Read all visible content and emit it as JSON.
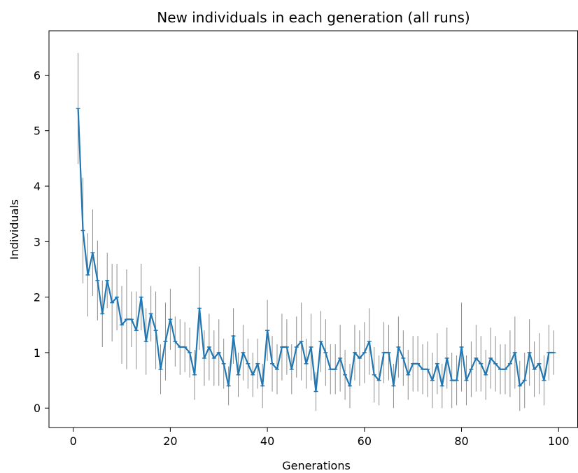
{
  "chart_data": {
    "type": "line",
    "title": "New individuals in each generation (all runs)",
    "xlabel": "Generations",
    "ylabel": "Individuals",
    "xlim": [
      -5,
      104
    ],
    "ylim": [
      -0.35,
      6.8
    ],
    "xticks": [
      0,
      20,
      40,
      60,
      80,
      100
    ],
    "yticks": [
      0,
      1,
      2,
      3,
      4,
      5,
      6
    ],
    "grid": false,
    "line_color": "#1f77b4",
    "errorbar_color": "#8c8c8c",
    "series": [
      {
        "x": [
          1,
          2,
          3,
          4,
          5,
          6,
          7,
          8,
          9,
          10,
          11,
          12,
          13,
          14,
          15,
          16,
          17,
          18,
          19,
          20,
          21,
          22,
          23,
          24,
          25,
          26,
          27,
          28,
          29,
          30,
          31,
          32,
          33,
          34,
          35,
          36,
          37,
          38,
          39,
          40,
          41,
          42,
          43,
          44,
          45,
          46,
          47,
          48,
          49,
          50,
          51,
          52,
          53,
          54,
          55,
          56,
          57,
          58,
          59,
          60,
          61,
          62,
          63,
          64,
          65,
          66,
          67,
          68,
          69,
          70,
          71,
          72,
          73,
          74,
          75,
          76,
          77,
          78,
          79,
          80,
          81,
          82,
          83,
          84,
          85,
          86,
          87,
          88,
          89,
          90,
          91,
          92,
          93,
          94,
          95,
          96,
          97,
          98,
          99
        ],
        "y": [
          5.4,
          3.2,
          2.4,
          2.8,
          2.3,
          1.7,
          2.3,
          1.9,
          2.0,
          1.5,
          1.6,
          1.6,
          1.4,
          2.0,
          1.2,
          1.7,
          1.4,
          0.7,
          1.2,
          1.6,
          1.2,
          1.1,
          1.1,
          1.0,
          0.6,
          1.8,
          0.9,
          1.1,
          0.9,
          1.0,
          0.8,
          0.4,
          1.3,
          0.6,
          1.0,
          0.8,
          0.6,
          0.8,
          0.4,
          1.4,
          0.8,
          0.7,
          1.1,
          1.1,
          0.7,
          1.1,
          1.2,
          0.8,
          1.1,
          0.3,
          1.2,
          1.0,
          0.7,
          0.7,
          0.9,
          0.6,
          0.4,
          1.0,
          0.9,
          1.0,
          1.2,
          0.6,
          0.5,
          1.0,
          1.0,
          0.4,
          1.1,
          0.9,
          0.6,
          0.8,
          0.8,
          0.7,
          0.7,
          0.5,
          0.8,
          0.4,
          0.9,
          0.5,
          0.5,
          1.1,
          0.5,
          0.7,
          0.9,
          0.8,
          0.6,
          0.9,
          0.8,
          0.7,
          0.7,
          0.8,
          1.0,
          0.4,
          0.5,
          1.0,
          0.7,
          0.8,
          0.5,
          1.0,
          1.0
        ],
        "err": [
          1.0,
          0.95,
          0.75,
          0.78,
          0.72,
          0.6,
          0.5,
          0.7,
          0.6,
          0.7,
          0.9,
          0.5,
          0.7,
          0.6,
          0.6,
          0.5,
          0.7,
          0.45,
          0.7,
          0.55,
          0.45,
          0.5,
          0.45,
          0.45,
          0.45,
          0.75,
          0.5,
          0.6,
          0.5,
          0.6,
          0.45,
          0.35,
          0.5,
          0.4,
          0.5,
          0.45,
          0.4,
          0.45,
          0.4,
          0.55,
          0.5,
          0.45,
          0.6,
          0.5,
          0.45,
          0.55,
          0.7,
          0.45,
          0.6,
          0.35,
          0.55,
          0.6,
          0.45,
          0.45,
          0.6,
          0.45,
          0.4,
          0.5,
          0.5,
          0.55,
          0.6,
          0.5,
          0.45,
          0.55,
          0.5,
          0.4,
          0.55,
          0.5,
          0.45,
          0.5,
          0.5,
          0.45,
          0.5,
          0.5,
          0.55,
          0.4,
          0.55,
          0.5,
          0.45,
          0.8,
          0.45,
          0.5,
          0.6,
          0.5,
          0.45,
          0.55,
          0.5,
          0.45,
          0.45,
          0.6,
          0.65,
          0.45,
          0.5,
          0.6,
          0.5,
          0.55,
          0.45,
          0.5,
          0.4
        ]
      }
    ]
  }
}
